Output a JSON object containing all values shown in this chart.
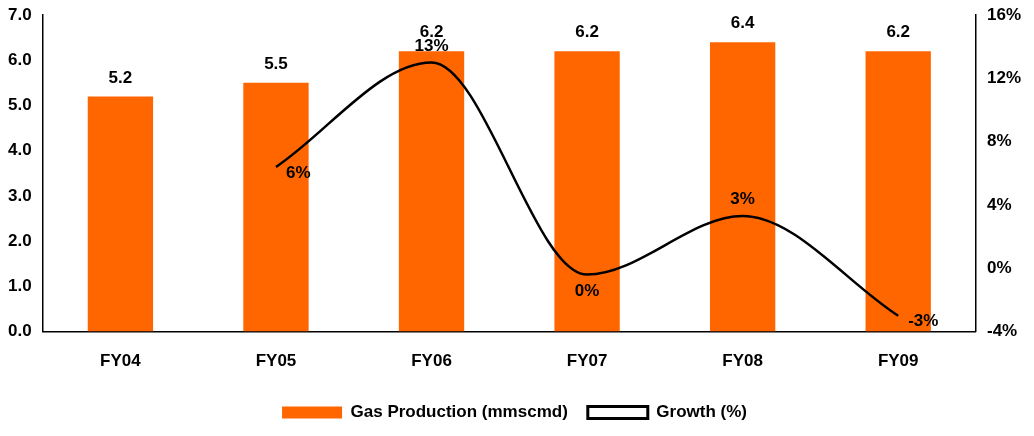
{
  "chart_data": {
    "type": "bar",
    "categories": [
      "FY04",
      "FY05",
      "FY06",
      "FY07",
      "FY08",
      "FY09"
    ],
    "series": [
      {
        "name": "Gas Production (mmscmd)",
        "color": "#ff6600",
        "values": [
          5.2,
          5.5,
          6.2,
          6.2,
          6.4,
          6.2
        ],
        "value_labels": [
          "5.2",
          "5.5",
          "6.2",
          "6.2",
          "6.4",
          "6.2"
        ]
      },
      {
        "name": "Growth (%)",
        "type": "line",
        "axis": "y2",
        "color": "#000000",
        "values": [
          null,
          6.4,
          13.0,
          -0.4,
          3.3,
          -3.0
        ],
        "value_labels": [
          null,
          "6%",
          "13%",
          "0%",
          "3%",
          "-3%"
        ]
      }
    ],
    "ylim": [
      0,
      7
    ],
    "yticks": [
      {
        "value": 0,
        "label": "0.0"
      },
      {
        "value": 1,
        "label": "1.0"
      },
      {
        "value": 2,
        "label": "2.0"
      },
      {
        "value": 3,
        "label": "3.0"
      },
      {
        "value": 4,
        "label": "4.0"
      },
      {
        "value": 5,
        "label": "5.0"
      },
      {
        "value": 6,
        "label": "6.0"
      },
      {
        "value": 7,
        "label": "7.0"
      }
    ],
    "y2lim": [
      -4,
      16
    ],
    "y2ticks": [
      {
        "value": -4,
        "label": "-4%"
      },
      {
        "value": 0,
        "label": "0%"
      },
      {
        "value": 4,
        "label": "4%"
      },
      {
        "value": 8,
        "label": "8%"
      },
      {
        "value": 12,
        "label": "12%"
      },
      {
        "value": 16,
        "label": "16%"
      }
    ],
    "grid": false,
    "legend": "bottom",
    "marker": "none"
  }
}
